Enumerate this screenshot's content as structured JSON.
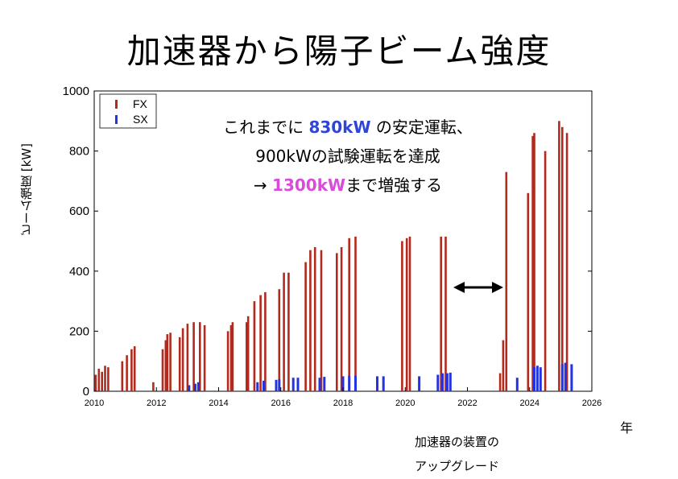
{
  "title": "加速器から陽子ビーム強度",
  "ylabel": "ビーム強度 [kW]",
  "xunit": "年",
  "upgrade_note": [
    "加速器の装置の",
    "アップグレード"
  ],
  "annotation": {
    "line1_pre": "これまでに ",
    "line1_value": "830kW",
    "line1_post": " の安定運転、",
    "line2": "900kWの試験運転を達成",
    "line3_pre": "→ ",
    "line3_value": "1300kW",
    "line3_post": "まで増強する"
  },
  "colors": {
    "fx": "#b22a1d",
    "sx": "#2433e0",
    "highlight_blue": "#2f45d6",
    "highlight_pink": "#d94bd9"
  },
  "chart_data": {
    "type": "bar",
    "xlim": [
      2010,
      2026
    ],
    "ylim": [
      0,
      1000
    ],
    "xticks": [
      "2010",
      "2012",
      "2014",
      "2016",
      "2018",
      "2020",
      "2022",
      "2024",
      "2026"
    ],
    "yticks": [
      "0",
      "200",
      "400",
      "600",
      "800",
      "1000"
    ],
    "legend": {
      "placement": "top-left",
      "entries": [
        "FX",
        "SX"
      ]
    },
    "series": [
      {
        "name": "FX",
        "bars": [
          [
            2010.05,
            55
          ],
          [
            2010.15,
            75
          ],
          [
            2010.25,
            65
          ],
          [
            2010.35,
            85
          ],
          [
            2010.45,
            80
          ],
          [
            2010.9,
            100
          ],
          [
            2011.05,
            120
          ],
          [
            2011.2,
            140
          ],
          [
            2011.3,
            150
          ],
          [
            2011.9,
            30
          ],
          [
            2012.2,
            140
          ],
          [
            2012.3,
            170
          ],
          [
            2012.35,
            190
          ],
          [
            2012.45,
            195
          ],
          [
            2012.75,
            180
          ],
          [
            2012.85,
            210
          ],
          [
            2013.0,
            225
          ],
          [
            2013.2,
            230
          ],
          [
            2013.4,
            230
          ],
          [
            2013.55,
            220
          ],
          [
            2014.3,
            200
          ],
          [
            2014.4,
            220
          ],
          [
            2014.45,
            230
          ],
          [
            2014.9,
            230
          ],
          [
            2014.95,
            250
          ],
          [
            2015.15,
            300
          ],
          [
            2015.35,
            320
          ],
          [
            2015.5,
            330
          ],
          [
            2015.95,
            340
          ],
          [
            2016.1,
            395
          ],
          [
            2016.25,
            395
          ],
          [
            2016.8,
            430
          ],
          [
            2016.95,
            470
          ],
          [
            2017.1,
            480
          ],
          [
            2017.3,
            470
          ],
          [
            2017.8,
            460
          ],
          [
            2017.95,
            480
          ],
          [
            2018.2,
            510
          ],
          [
            2018.4,
            515
          ],
          [
            2019.9,
            500
          ],
          [
            2020.05,
            510
          ],
          [
            2020.15,
            515
          ],
          [
            2021.15,
            515
          ],
          [
            2021.3,
            515
          ],
          [
            2023.05,
            60
          ],
          [
            2023.15,
            170
          ],
          [
            2023.25,
            730
          ],
          [
            2023.95,
            660
          ],
          [
            2024.1,
            850
          ],
          [
            2024.15,
            860
          ],
          [
            2024.5,
            800
          ],
          [
            2024.95,
            900
          ],
          [
            2025.05,
            880
          ],
          [
            2025.2,
            860
          ]
        ]
      },
      {
        "name": "SX",
        "bars": [
          [
            2013.05,
            20
          ],
          [
            2013.25,
            25
          ],
          [
            2013.35,
            30
          ],
          [
            2015.25,
            30
          ],
          [
            2015.45,
            35
          ],
          [
            2015.85,
            38
          ],
          [
            2015.95,
            40
          ],
          [
            2016.4,
            45
          ],
          [
            2016.55,
            45
          ],
          [
            2017.25,
            45
          ],
          [
            2017.4,
            48
          ],
          [
            2018.0,
            50
          ],
          [
            2018.2,
            52
          ],
          [
            2018.4,
            52
          ],
          [
            2019.1,
            50
          ],
          [
            2019.3,
            50
          ],
          [
            2020.45,
            50
          ],
          [
            2021.05,
            55
          ],
          [
            2021.2,
            60
          ],
          [
            2021.35,
            60
          ],
          [
            2021.45,
            62
          ],
          [
            2023.6,
            45
          ],
          [
            2024.15,
            80
          ],
          [
            2024.25,
            85
          ],
          [
            2024.35,
            80
          ],
          [
            2025.05,
            90
          ],
          [
            2025.15,
            95
          ],
          [
            2025.35,
            90
          ]
        ]
      }
    ]
  }
}
